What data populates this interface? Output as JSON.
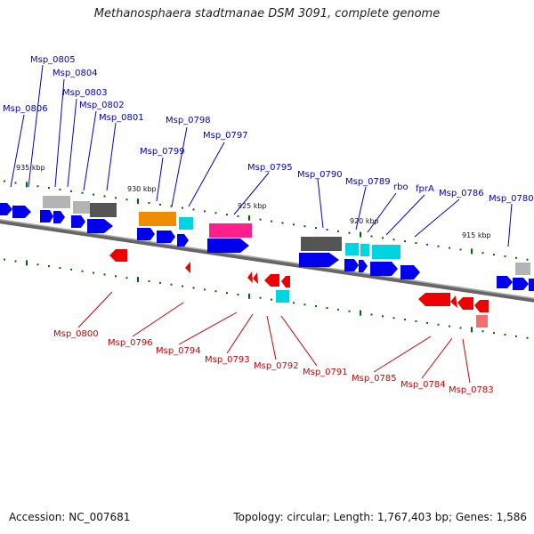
{
  "title": "Methanosphaera stadtmanae DSM 3091, complete genome",
  "footer": {
    "accession": "Accession: NC_007681",
    "summary": "Topology: circular; Length: 1,767,403 bp; Genes: 1,586"
  },
  "colors": {
    "forward_gene": "#0000ee",
    "reverse_gene": "#ee0000",
    "forward_label": "#0000cc",
    "reverse_label": "#cc0000",
    "backbone": "#777777",
    "tick": "#006600"
  },
  "scale_labels": [
    "935 kbp",
    "930 kbp",
    "925 kbp",
    "920 kbp",
    "915 kbp"
  ],
  "forward_labels": [
    "Msp_0806",
    "Msp_0805",
    "Msp_0804",
    "Msp_0803",
    "Msp_0802",
    "Msp_0801",
    "Msp_0799",
    "Msp_0798",
    "Msp_0797",
    "Msp_0795",
    "Msp_0790",
    "Msp_0789",
    "rbo",
    "fprA",
    "Msp_0786",
    "Msp_0780"
  ],
  "reverse_labels": [
    "Msp_0800",
    "Msp_0796",
    "Msp_0794",
    "Msp_0793",
    "Msp_0792",
    "Msp_0791",
    "Msp_0785",
    "Msp_0784",
    "Msp_0783"
  ]
}
